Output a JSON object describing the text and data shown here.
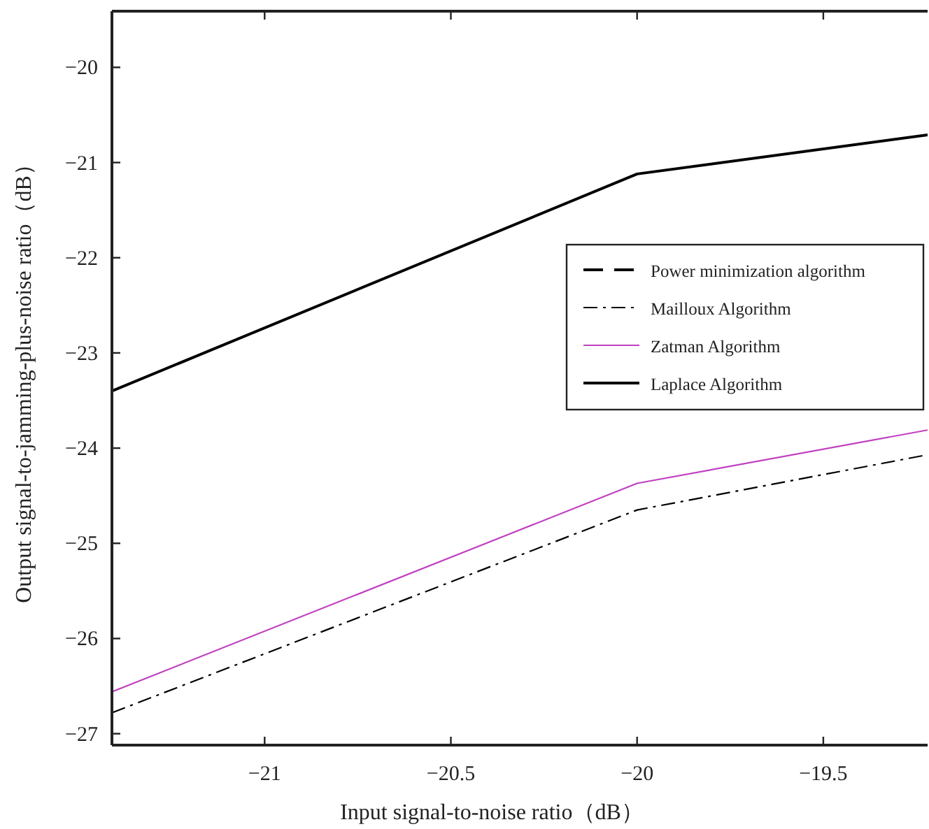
{
  "chart_data": {
    "type": "line",
    "xlabel": "Input signal-to-noise ratio（dB）",
    "ylabel": "Output signal-to-jamming-plus-noise ratio（dB）",
    "x": [
      -21.41,
      -20,
      -19.22
    ],
    "series": [
      {
        "name": "Power minimization algorithm",
        "color": "#000000",
        "line_style": "dashed",
        "values": [
          null,
          null,
          null
        ]
      },
      {
        "name": "Mailloux Algorithm",
        "color": "#000000",
        "line_style": "dashdot",
        "values": [
          -26.78,
          -24.65,
          -24.07
        ]
      },
      {
        "name": "Zatman Algorithm",
        "color": "#c040c0",
        "line_style": "solid",
        "values": [
          -26.56,
          -24.37,
          -23.81
        ]
      },
      {
        "name": "Laplace Algorithm",
        "color": "#000000",
        "line_style": "solid",
        "values": [
          -23.4,
          -21.12,
          -20.71
        ]
      }
    ],
    "xlim": [
      -21.41,
      -19.22
    ],
    "ylim": [
      -27.12,
      -19.41
    ],
    "xticks": [
      {
        "value": -21,
        "label": "−21"
      },
      {
        "value": -20.5,
        "label": "−20.5"
      },
      {
        "value": -20,
        "label": "−20"
      },
      {
        "value": -19.5,
        "label": "−19.5"
      }
    ],
    "yticks": [
      {
        "value": -27,
        "label": "−27"
      },
      {
        "value": -26,
        "label": "−26"
      },
      {
        "value": -25,
        "label": "−25"
      },
      {
        "value": -24,
        "label": "−24"
      },
      {
        "value": -23,
        "label": "−23"
      },
      {
        "value": -22,
        "label": "−22"
      },
      {
        "value": -21,
        "label": "−21"
      },
      {
        "value": -20,
        "label": "−20"
      }
    ],
    "grid": false,
    "legend": "right",
    "marker": "none"
  }
}
